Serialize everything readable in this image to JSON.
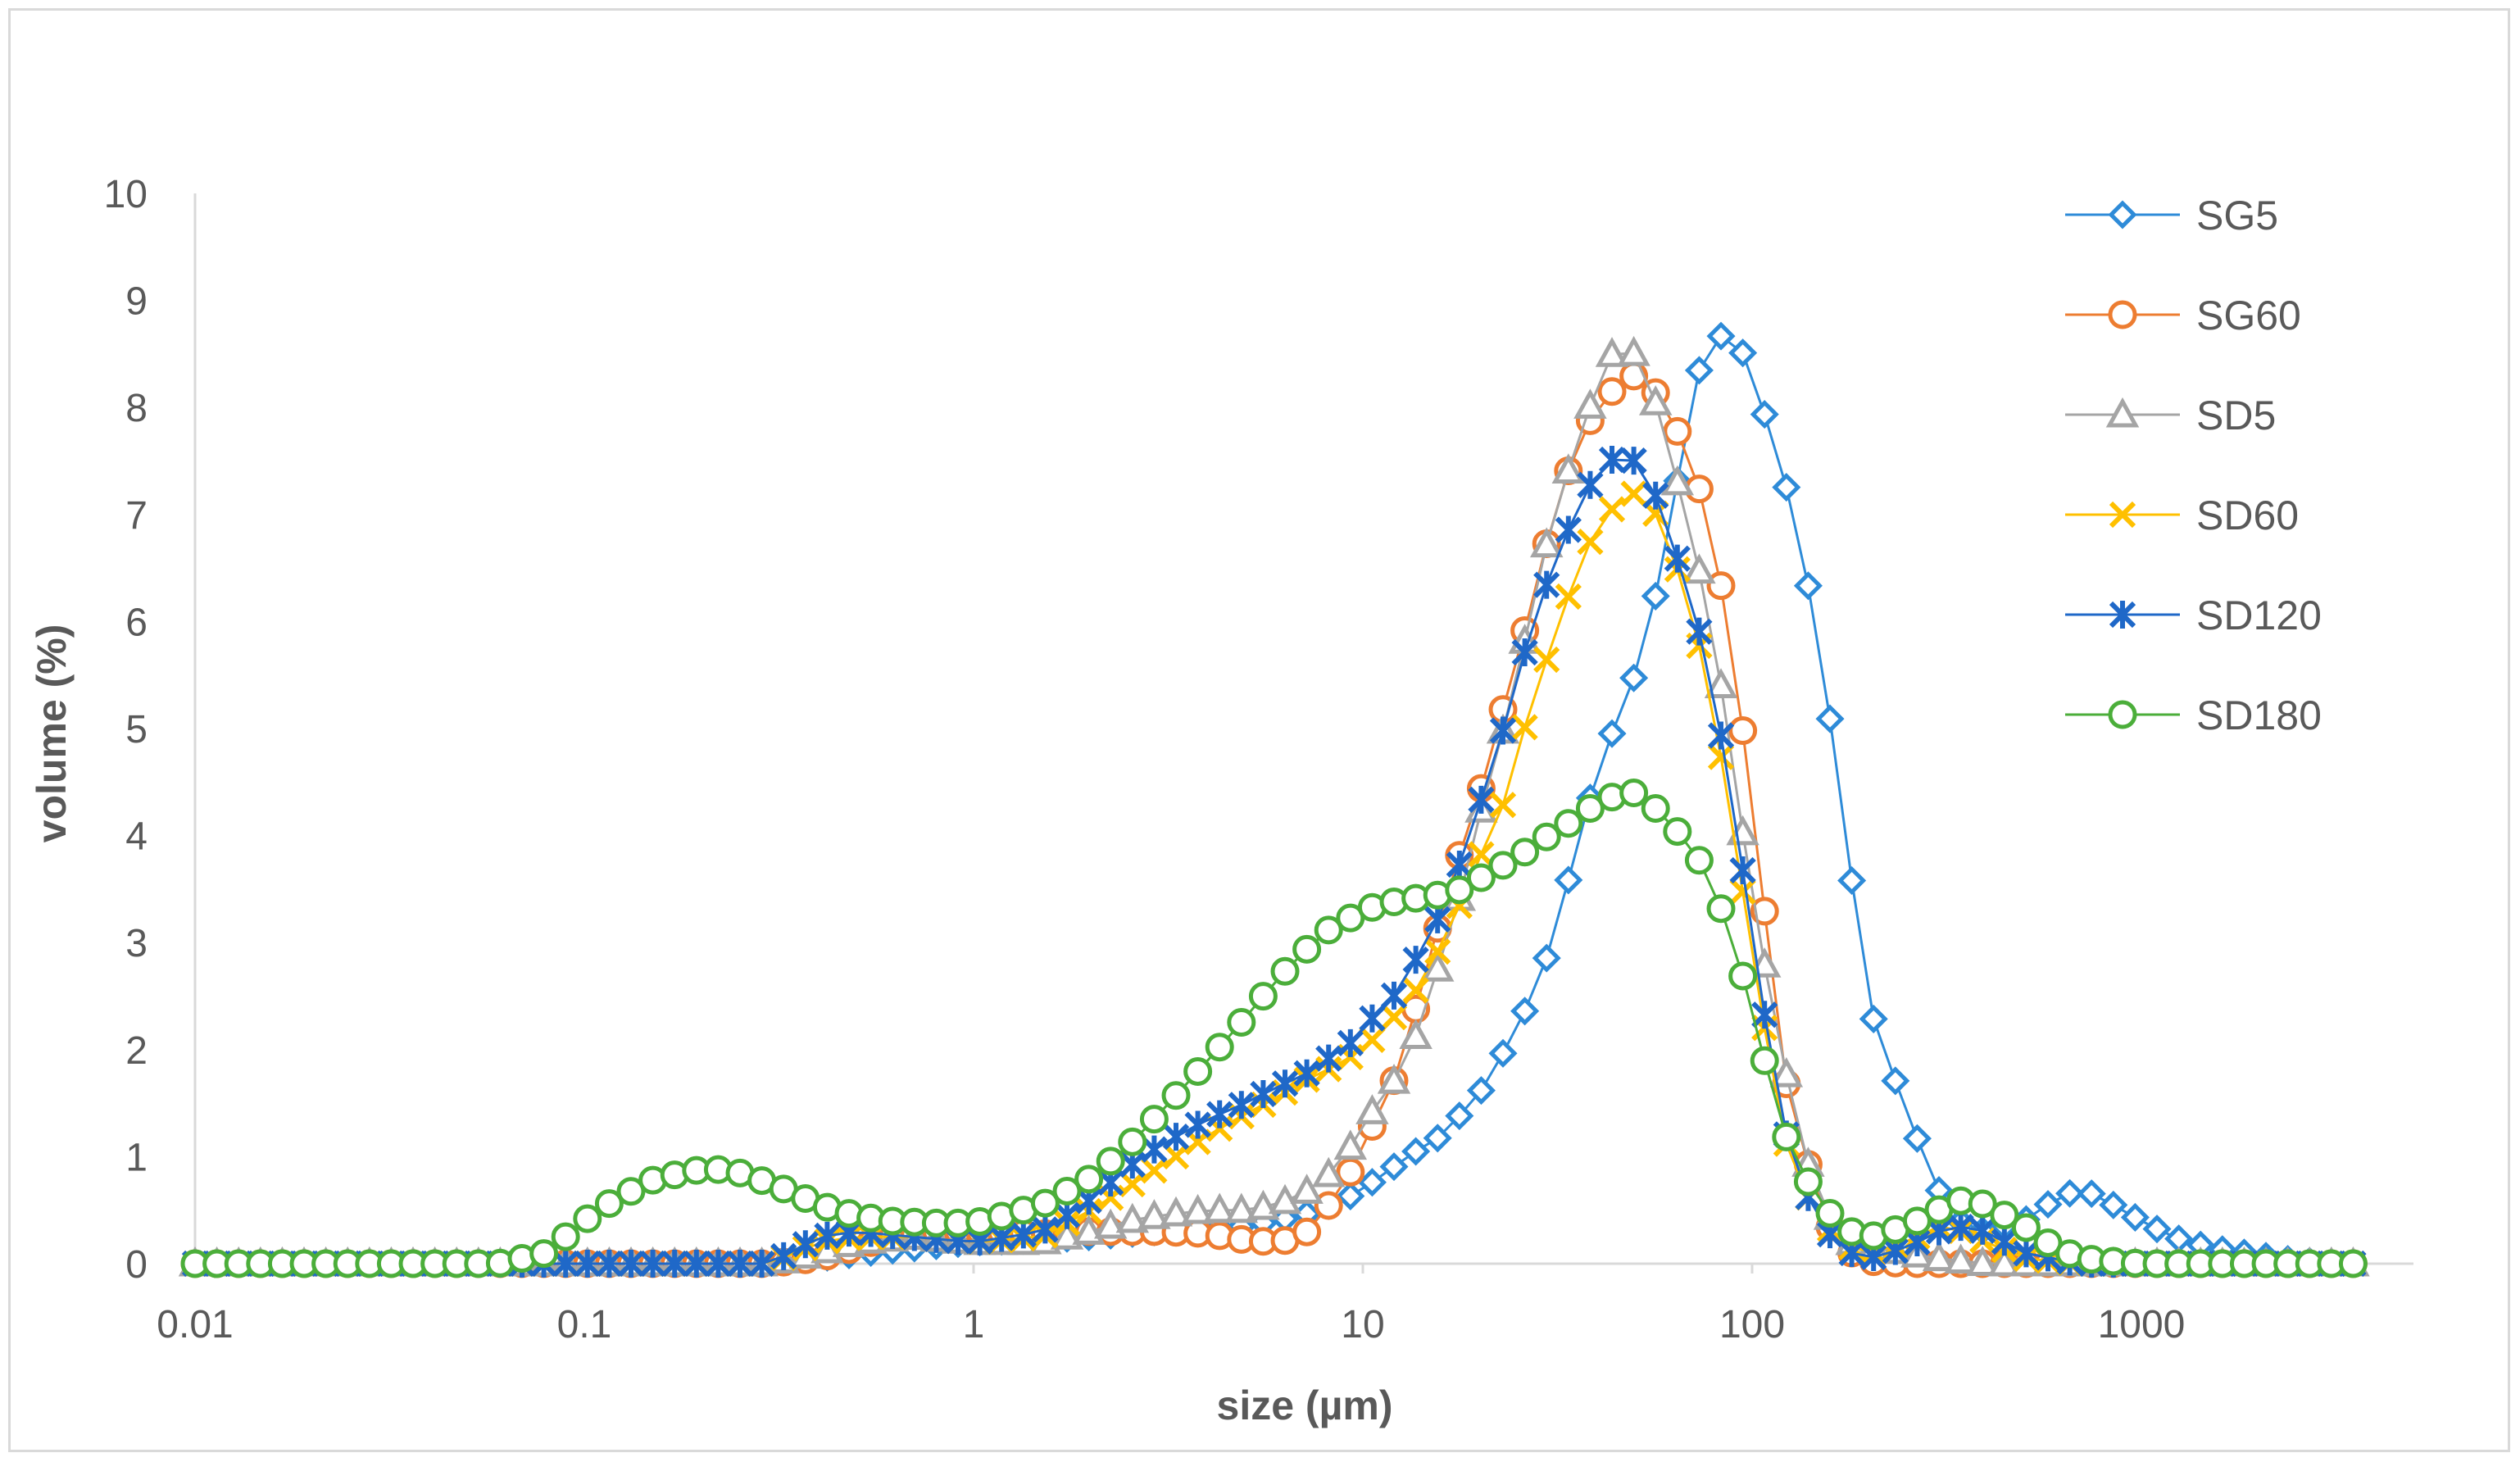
{
  "chart_data": {
    "type": "scatter",
    "title": "",
    "xlabel": "size (µm)",
    "ylabel": "volume (%)",
    "xscale": "log",
    "xlim": [
      0.01,
      5000
    ],
    "ylim": [
      0,
      10
    ],
    "yticks": [
      "0",
      "1",
      "2",
      "3",
      "4",
      "5",
      "6",
      "7",
      "8",
      "9",
      "10"
    ],
    "xticks": [
      {
        "value": 0.01,
        "label": "0.01"
      },
      {
        "value": 0.1,
        "label": "0.1"
      },
      {
        "value": 1,
        "label": "1"
      },
      {
        "value": 10,
        "label": "10"
      },
      {
        "value": 100,
        "label": "100"
      },
      {
        "value": 1000,
        "label": "1000"
      }
    ],
    "grid": false,
    "legend_position": "top-right",
    "series": [
      {
        "name": "SG5",
        "color": "#2E8BD8",
        "marker": "diamond",
        "x": [
          0.01,
          0.03,
          0.06,
          0.1,
          0.2,
          0.3,
          0.4,
          0.6,
          1,
          1.5,
          2,
          3,
          5,
          7,
          9,
          11,
          13,
          16,
          20,
          25,
          30,
          35,
          40,
          50,
          60,
          70,
          80,
          90,
          100,
          120,
          140,
          160,
          180,
          200,
          250,
          300,
          350,
          400,
          500,
          600,
          700,
          800,
          1000,
          1200,
          1500,
          2000,
          2500,
          3500
        ],
        "y": [
          0,
          0,
          0,
          0,
          0,
          0,
          0.05,
          0.12,
          0.2,
          0.22,
          0.25,
          0.3,
          0.35,
          0.45,
          0.6,
          0.8,
          1.0,
          1.2,
          1.6,
          2.2,
          2.9,
          3.8,
          4.6,
          5.5,
          6.6,
          8.2,
          8.65,
          8.7,
          8.3,
          7.4,
          6.3,
          5.0,
          3.6,
          2.4,
          1.4,
          0.7,
          0.35,
          0.3,
          0.4,
          0.6,
          0.7,
          0.6,
          0.4,
          0.25,
          0.15,
          0.08,
          0.03,
          0
        ]
      },
      {
        "name": "SG60",
        "color": "#ED7D31",
        "marker": "circle",
        "x": [
          0.01,
          0.05,
          0.1,
          0.2,
          0.3,
          0.4,
          0.5,
          0.6,
          0.8,
          1,
          1.5,
          2,
          3,
          4,
          5,
          6,
          7,
          8,
          9,
          10,
          12,
          14,
          16,
          18,
          20,
          23,
          26,
          30,
          35,
          40,
          45,
          50,
          55,
          60,
          70,
          80,
          90,
          100,
          110,
          120,
          140,
          160,
          180,
          200,
          250,
          300,
          400,
          500,
          700,
          1000,
          2000,
          3500
        ],
        "y": [
          0,
          0,
          0,
          0,
          0,
          0.05,
          0.15,
          0.25,
          0.3,
          0.3,
          0.28,
          0.3,
          0.3,
          0.28,
          0.22,
          0.2,
          0.25,
          0.5,
          0.75,
          1.1,
          1.7,
          2.5,
          3.3,
          3.9,
          4.4,
          5.2,
          5.9,
          6.8,
          7.6,
          8.0,
          8.2,
          8.3,
          8.2,
          8.0,
          7.5,
          6.7,
          5.6,
          4.3,
          3.0,
          1.8,
          0.9,
          0.3,
          0.1,
          0.02,
          0,
          0,
          0,
          0,
          0,
          0,
          0,
          0
        ]
      },
      {
        "name": "SD5",
        "color": "#A5A5A5",
        "marker": "triangle",
        "x": [
          0.01,
          0.05,
          0.1,
          0.2,
          0.3,
          0.4,
          0.5,
          0.7,
          1,
          1.5,
          2,
          2.5,
          3,
          4,
          5,
          6,
          7,
          8,
          9,
          10,
          12,
          14,
          16,
          18,
          20,
          23,
          26,
          30,
          35,
          40,
          45,
          50,
          55,
          60,
          70,
          80,
          90,
          100,
          120,
          140,
          160,
          180,
          200,
          250,
          300,
          400,
          500,
          700,
          1000,
          2000,
          3500
        ],
        "y": [
          0,
          0,
          0,
          0,
          0,
          0.1,
          0.2,
          0.25,
          0.2,
          0.2,
          0.3,
          0.4,
          0.45,
          0.5,
          0.5,
          0.55,
          0.65,
          0.8,
          1.0,
          1.3,
          1.7,
          2.2,
          2.9,
          3.5,
          4.2,
          5.0,
          5.8,
          6.8,
          7.6,
          8.2,
          8.6,
          8.5,
          8.2,
          7.7,
          6.8,
          5.8,
          4.6,
          3.4,
          1.9,
          0.9,
          0.4,
          0.2,
          0.15,
          0.1,
          0.05,
          0,
          0,
          0,
          0,
          0,
          0
        ]
      },
      {
        "name": "SD60",
        "color": "#FFC000",
        "marker": "x",
        "x": [
          0.01,
          0.05,
          0.1,
          0.2,
          0.3,
          0.4,
          0.5,
          0.7,
          1,
          1.5,
          2,
          3,
          4,
          5,
          6,
          7,
          8,
          9,
          10,
          12,
          14,
          16,
          18,
          20,
          23,
          26,
          30,
          35,
          40,
          45,
          50,
          55,
          60,
          70,
          80,
          90,
          100,
          110,
          120,
          140,
          160,
          180,
          200,
          250,
          300,
          350,
          400,
          500,
          700,
          1000,
          2000,
          3500
        ],
        "y": [
          0,
          0,
          0,
          0,
          0,
          0.2,
          0.25,
          0.25,
          0.2,
          0.25,
          0.5,
          0.9,
          1.2,
          1.4,
          1.55,
          1.7,
          1.8,
          1.9,
          2.0,
          2.3,
          2.6,
          3.0,
          3.4,
          3.8,
          4.3,
          5.0,
          5.7,
          6.4,
          6.9,
          7.1,
          7.2,
          7.1,
          6.8,
          6.1,
          5.1,
          4.0,
          2.9,
          2.0,
          1.2,
          0.6,
          0.3,
          0.15,
          0.1,
          0.2,
          0.35,
          0.3,
          0.2,
          0.05,
          0,
          0,
          0,
          0
        ]
      },
      {
        "name": "SD120",
        "color": "#1F68C8",
        "marker": "star",
        "x": [
          0.01,
          0.05,
          0.1,
          0.2,
          0.3,
          0.4,
          0.5,
          0.7,
          1,
          1.5,
          2,
          2.5,
          3,
          4,
          5,
          6,
          7,
          8,
          9,
          10,
          12,
          14,
          16,
          18,
          20,
          23,
          26,
          30,
          35,
          40,
          45,
          50,
          55,
          60,
          70,
          80,
          90,
          100,
          110,
          120,
          140,
          160,
          180,
          200,
          250,
          300,
          350,
          400,
          500,
          700,
          1000,
          2000,
          3500
        ],
        "y": [
          0,
          0,
          0,
          0,
          0,
          0.25,
          0.3,
          0.25,
          0.2,
          0.3,
          0.6,
          0.9,
          1.1,
          1.35,
          1.5,
          1.65,
          1.75,
          1.9,
          2.0,
          2.2,
          2.5,
          2.9,
          3.3,
          3.8,
          4.3,
          5.0,
          5.7,
          6.4,
          7.0,
          7.4,
          7.55,
          7.5,
          7.3,
          6.9,
          6.2,
          5.3,
          4.2,
          3.1,
          2.1,
          1.3,
          0.6,
          0.25,
          0.1,
          0.05,
          0.15,
          0.3,
          0.35,
          0.3,
          0.1,
          0,
          0,
          0,
          0
        ]
      },
      {
        "name": "SD180",
        "color": "#4BAE3A",
        "marker": "circle",
        "x": [
          0.01,
          0.02,
          0.04,
          0.06,
          0.08,
          0.1,
          0.12,
          0.15,
          0.18,
          0.2,
          0.22,
          0.25,
          0.3,
          0.35,
          0.4,
          0.5,
          0.6,
          0.8,
          1,
          1.2,
          1.5,
          2,
          2.5,
          3,
          4,
          5,
          6,
          7,
          8,
          9,
          10,
          11,
          12,
          14,
          16,
          18,
          20,
          25,
          30,
          35,
          40,
          45,
          50,
          55,
          60,
          70,
          80,
          90,
          100,
          110,
          120,
          140,
          160,
          180,
          200,
          250,
          300,
          350,
          400,
          500,
          600,
          700,
          1000,
          1500,
          2000,
          3500
        ],
        "y": [
          0,
          0,
          0,
          0,
          0.1,
          0.4,
          0.6,
          0.78,
          0.85,
          0.88,
          0.88,
          0.85,
          0.75,
          0.65,
          0.55,
          0.45,
          0.4,
          0.38,
          0.38,
          0.45,
          0.55,
          0.8,
          1.1,
          1.4,
          1.9,
          2.3,
          2.65,
          2.9,
          3.1,
          3.2,
          3.3,
          3.35,
          3.38,
          3.42,
          3.45,
          3.5,
          3.6,
          3.8,
          4.0,
          4.15,
          4.3,
          4.38,
          4.4,
          4.3,
          4.15,
          3.9,
          3.5,
          2.95,
          2.4,
          1.75,
          1.25,
          0.75,
          0.45,
          0.3,
          0.25,
          0.35,
          0.5,
          0.6,
          0.55,
          0.35,
          0.15,
          0.05,
          0,
          0,
          0,
          0
        ]
      }
    ]
  }
}
